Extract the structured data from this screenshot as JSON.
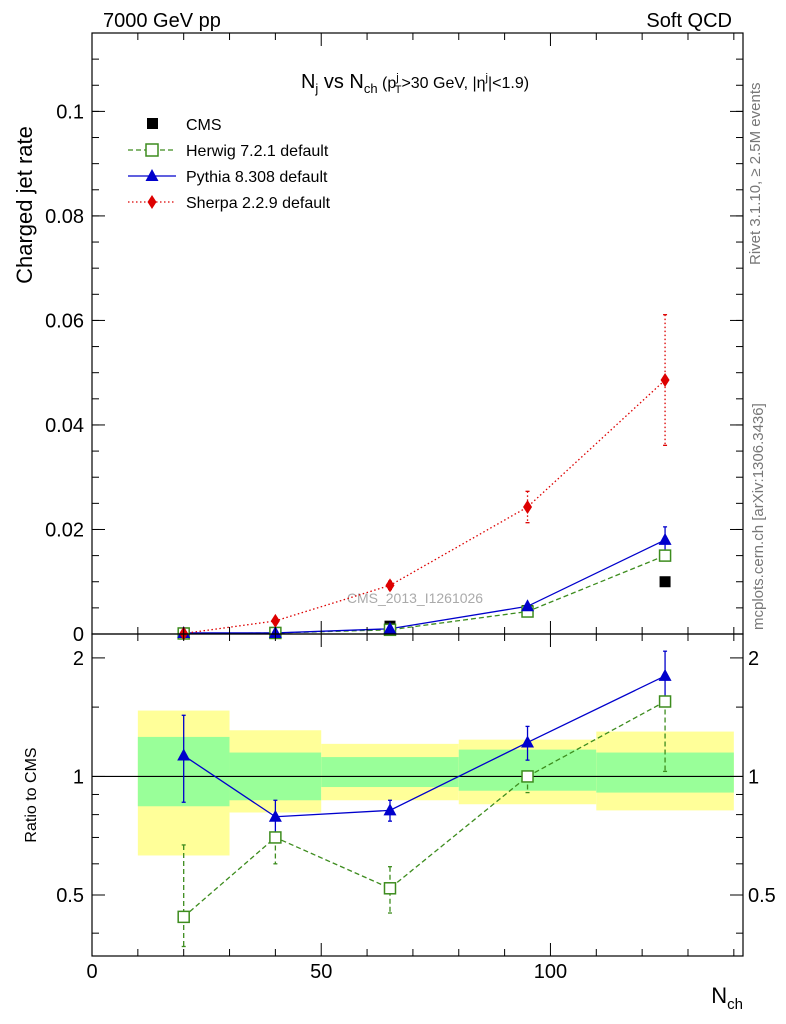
{
  "header": {
    "left": "7000 GeV pp",
    "right": "Soft QCD"
  },
  "plot_title": {
    "a": "N",
    "a_sub": "j",
    "b": " vs N",
    "b_sub": "ch",
    "c": " (p",
    "c_sup": "j",
    "c_sub": "T",
    "d": ">30 GeV, |η",
    "d_sup": "j",
    "e": "|<1.9)"
  },
  "side_labels": {
    "rivet": "Rivet 3.1.10, ≥ 2.5M events",
    "mcplots": "mcplots.cern.ch [arXiv:1306.3436]"
  },
  "watermark": "CMS_2013_I1261026",
  "chart_data": [
    {
      "type": "scatter",
      "panel": "main",
      "ylabel": "Charged jet rate",
      "xlim": [
        0,
        142
      ],
      "ylim": [
        0,
        0.115
      ],
      "yticks": [
        0,
        0.02,
        0.04,
        0.06,
        0.08,
        0.1
      ],
      "ytick_labels": [
        "0",
        "0.02",
        "0.04",
        "0.06",
        "0.08",
        "0.1"
      ],
      "legend": "top-left",
      "series": [
        {
          "name": "CMS",
          "color": "#000000",
          "marker": "square",
          "line": "none",
          "x": [
            20,
            40,
            65,
            95,
            125
          ],
          "y": [
            0.0002,
            0.0003,
            0.0015,
            0.0045,
            0.01
          ],
          "yerr_lo": [
            0,
            0,
            0,
            0,
            0
          ],
          "yerr_hi": [
            0,
            0,
            0,
            0,
            0
          ]
        },
        {
          "name": "Herwig 7.2.1 default",
          "color": "#3d8c1e",
          "marker": "open-square",
          "line": "dashed",
          "x": [
            20,
            40,
            65,
            95,
            125
          ],
          "y": [
            0.0001,
            0.0002,
            0.0008,
            0.0043,
            0.015
          ],
          "yerr_lo": [
            0,
            0,
            0,
            0,
            0.001
          ],
          "yerr_hi": [
            0,
            0,
            0,
            0,
            0.001
          ]
        },
        {
          "name": "Pythia 8.308 default",
          "color": "#0000cc",
          "marker": "triangle",
          "line": "solid",
          "x": [
            20,
            40,
            65,
            95,
            125
          ],
          "y": [
            0.0002,
            0.0002,
            0.001,
            0.0053,
            0.018
          ],
          "yerr_lo": [
            0,
            0,
            0,
            0.0004,
            0.0025
          ],
          "yerr_hi": [
            0,
            0,
            0,
            0.0004,
            0.0025
          ]
        },
        {
          "name": "Sherpa 2.2.9 default",
          "color": "#dd0000",
          "marker": "diamond",
          "line": "dotted",
          "x": [
            20,
            40,
            65,
            95,
            125
          ],
          "y": [
            0.0001,
            0.0025,
            0.0093,
            0.0243,
            0.0486
          ],
          "yerr_lo": [
            0,
            0.0003,
            0.0008,
            0.003,
            0.0125
          ],
          "yerr_hi": [
            0,
            0.0003,
            0.0008,
            0.003,
            0.0125
          ]
        }
      ]
    },
    {
      "type": "scatter",
      "panel": "ratio",
      "ylabel": "Ratio to CMS",
      "xlabel": "N",
      "xlabel_sub": "ch",
      "xlim": [
        0,
        142
      ],
      "ylim": [
        0.35,
        2.3
      ],
      "ylog": true,
      "yticks": [
        0.5,
        1,
        2
      ],
      "ytick_labels": [
        "0.5",
        "1",
        "2"
      ],
      "xticks": [
        0,
        50,
        100
      ],
      "xtick_labels": [
        "0",
        "50",
        "100"
      ],
      "reference": 1,
      "bands": [
        {
          "x": [
            10,
            30
          ],
          "yellow": [
            0.63,
            1.47
          ],
          "green": [
            0.84,
            1.26
          ]
        },
        {
          "x": [
            30,
            50
          ],
          "yellow": [
            0.81,
            1.31
          ],
          "green": [
            0.87,
            1.15
          ]
        },
        {
          "x": [
            50,
            80
          ],
          "yellow": [
            0.87,
            1.21
          ],
          "green": [
            0.94,
            1.12
          ]
        },
        {
          "x": [
            80,
            110
          ],
          "yellow": [
            0.85,
            1.24
          ],
          "green": [
            0.92,
            1.17
          ]
        },
        {
          "x": [
            110,
            140
          ],
          "yellow": [
            0.82,
            1.3
          ],
          "green": [
            0.91,
            1.15
          ]
        }
      ],
      "series": [
        {
          "name": "Herwig 7.2.1 default",
          "color": "#3d8c1e",
          "marker": "open-square",
          "line": "dashed",
          "x": [
            20,
            40,
            65,
            95,
            125
          ],
          "y": [
            0.44,
            0.7,
            0.52,
            1.0,
            1.55
          ],
          "yerr_lo": [
            0.07,
            0.1,
            0.07,
            0.09,
            0.52
          ],
          "yerr_hi": [
            0.23,
            0.0,
            0.07,
            0.0,
            0.0
          ]
        },
        {
          "name": "Pythia 8.308 default",
          "color": "#0000cc",
          "marker": "triangle",
          "line": "solid",
          "x": [
            20,
            40,
            65,
            95,
            125
          ],
          "y": [
            1.13,
            0.79,
            0.82,
            1.22,
            1.8
          ],
          "yerr_lo": [
            0.27,
            0.08,
            0.05,
            0.12,
            0.28
          ],
          "yerr_hi": [
            0.3,
            0.08,
            0.05,
            0.12,
            0.28
          ]
        }
      ]
    }
  ]
}
